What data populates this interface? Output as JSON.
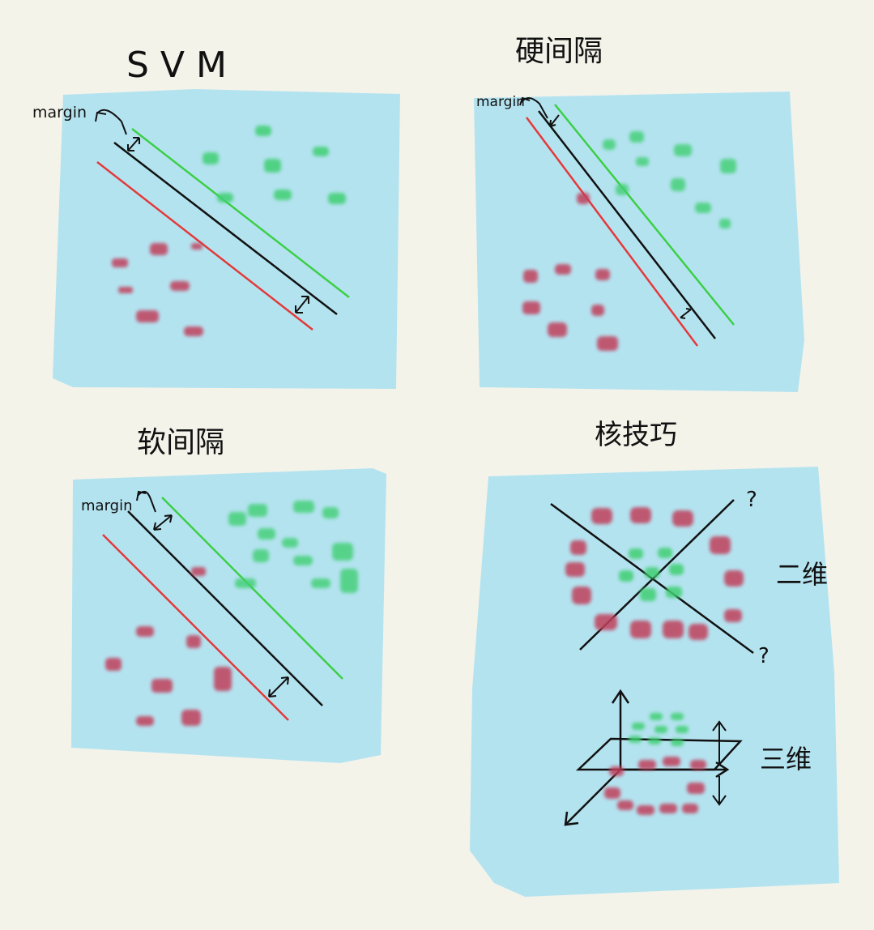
{
  "panels": [
    {
      "title": "SVM",
      "margin_label": "margin"
    },
    {
      "title": "硬间隔",
      "margin_label": "margin"
    },
    {
      "title": "软间隔",
      "margin_label": "margin"
    },
    {
      "title": "核技巧",
      "annotations": [
        "二维",
        "三维"
      ],
      "question_marks": [
        "?",
        "?"
      ]
    }
  ],
  "colors": {
    "background": "#f3f3ea",
    "panel": "#b4e3f0",
    "positive_class": "#3fcf72",
    "negative_class": "#c0405c",
    "hyperplane": "#111111",
    "positive_margin_line": "#3ccf45",
    "negative_margin_line": "#e23a3a"
  }
}
